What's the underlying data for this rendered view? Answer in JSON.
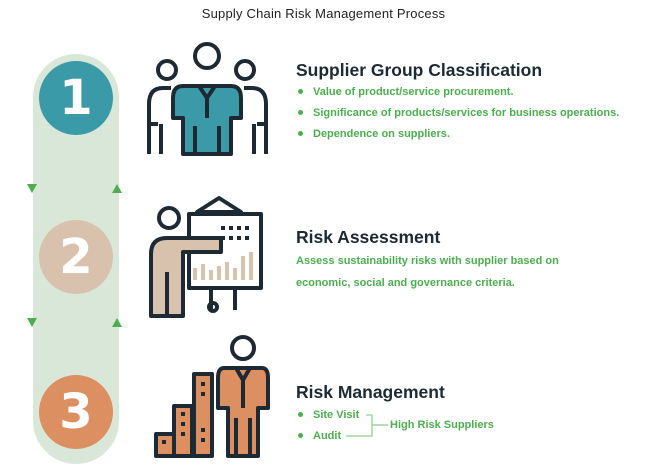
{
  "title": "Supply Chain Risk Management Process",
  "colors": {
    "teal": "#3a9aa8",
    "beige": "#d9c2ad",
    "orange": "#dc8f61",
    "track": "#d9e7d8",
    "green": "#4cae4f",
    "dark": "#1d2a33"
  },
  "steps": [
    {
      "number": "1",
      "heading": "Supplier Group Classification",
      "icon": "group-of-people-icon",
      "bullets": [
        "Value of product/service procurement.",
        "Significance of products/services for business operations.",
        "Dependence on suppliers."
      ]
    },
    {
      "number": "2",
      "heading": "Risk Assessment",
      "icon": "presentation-board-icon",
      "text_lines": [
        "Assess sustainability risks with supplier based on",
        "economic, social and governance criteria."
      ]
    },
    {
      "number": "3",
      "heading": "Risk Management",
      "icon": "person-bar-chart-icon",
      "bullets": [
        "Site Visit",
        "Audit"
      ],
      "bracket_label": "High Risk Suppliers"
    }
  ]
}
